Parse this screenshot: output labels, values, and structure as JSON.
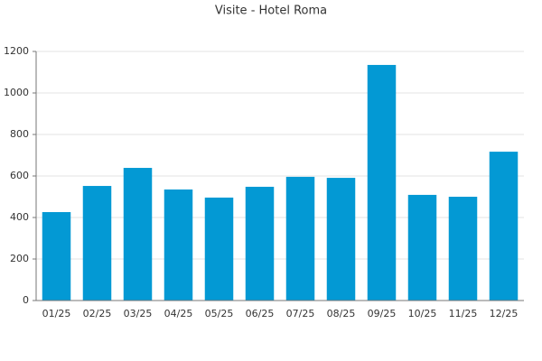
{
  "chart_data": {
    "type": "bar",
    "title": "Visite - Hotel Roma",
    "categories": [
      "01/25",
      "02/25",
      "03/25",
      "04/25",
      "05/25",
      "06/25",
      "07/25",
      "08/25",
      "09/25",
      "10/25",
      "11/25",
      "12/25"
    ],
    "values": [
      426,
      552,
      639,
      535,
      496,
      548,
      596,
      591,
      1135,
      509,
      500,
      717
    ],
    "color": "#0399d4",
    "ylim": [
      0,
      1200
    ],
    "yticks": [
      0,
      200,
      400,
      600,
      800,
      1000,
      1200
    ],
    "grid": true
  }
}
